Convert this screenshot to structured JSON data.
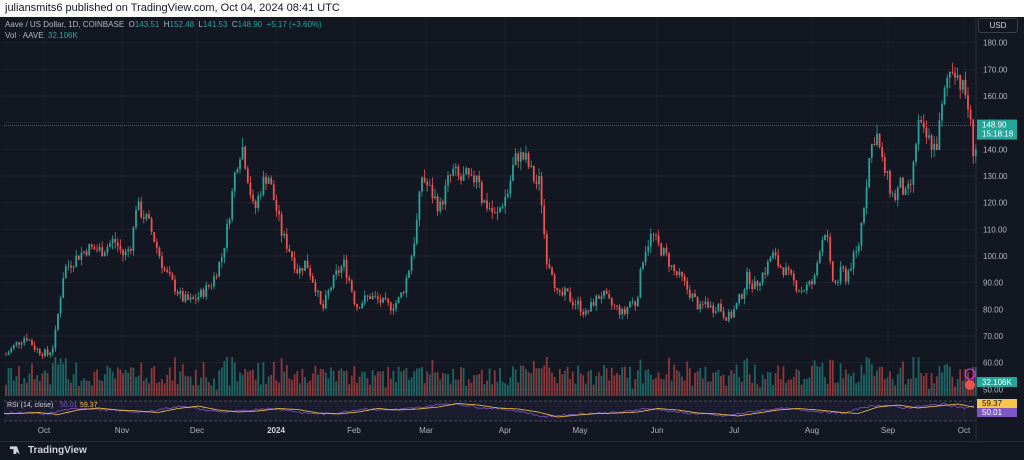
{
  "header": {
    "published": "juliansmits6 published on TradingView.com, Oct 04, 2024 08:41 UTC"
  },
  "legend": {
    "symbol": "Aave / US Dollar, 1D, COINBASE",
    "o_label": "O",
    "o": "143.51",
    "h_label": "H",
    "h": "152.48",
    "l_label": "L",
    "l": "141.53",
    "c_label": "C",
    "c": "148.90",
    "change": "+5.17 (+3.60%)",
    "vol_label": "Vol · AAVE",
    "vol": "32.106K"
  },
  "currency": "USD",
  "rsi_label": "RSI (14, close)",
  "rsi_value1": "50.01",
  "rsi_value2": "59.37",
  "price_badge": {
    "price": "148.90",
    "countdown": "15:18:18"
  },
  "volume_badge": "32.106K",
  "rsi_badges": [
    "59.37",
    "50.01"
  ],
  "footer": {
    "brand": "TradingView"
  },
  "colors": {
    "up": "#26a69a",
    "down": "#ef5350",
    "rsi": "#7e57c2",
    "rsi_ma": "#f7c54b",
    "background": "#131722"
  },
  "chart_data": {
    "type": "candlestick",
    "y_ticks": [
      180,
      170,
      160,
      150,
      140,
      130,
      120,
      110,
      100,
      90,
      80,
      70,
      60,
      50
    ],
    "y_range": [
      49,
      184
    ],
    "x_labels": [
      "Oct",
      "Nov",
      "Dec",
      "2024",
      "Feb",
      "Mar",
      "Apr",
      "May",
      "Jun",
      "Jul",
      "Aug",
      "Sep",
      "Oct"
    ],
    "anchors": [
      [
        0,
        63
      ],
      [
        10,
        67
      ],
      [
        20,
        70
      ],
      [
        30,
        65
      ],
      [
        42,
        63
      ],
      [
        48,
        67
      ],
      [
        58,
        95
      ],
      [
        72,
        100
      ],
      [
        82,
        103
      ],
      [
        96,
        102
      ],
      [
        108,
        106
      ],
      [
        118,
        100
      ],
      [
        126,
        105
      ],
      [
        130,
        119
      ],
      [
        142,
        113
      ],
      [
        152,
        102
      ],
      [
        158,
        95
      ],
      [
        166,
        90
      ],
      [
        176,
        84
      ],
      [
        186,
        83
      ],
      [
        196,
        86
      ],
      [
        206,
        90
      ],
      [
        216,
        100
      ],
      [
        222,
        112
      ],
      [
        230,
        134
      ],
      [
        236,
        142
      ],
      [
        240,
        134
      ],
      [
        248,
        116
      ],
      [
        256,
        127
      ],
      [
        262,
        131
      ],
      [
        266,
        124
      ],
      [
        270,
        118
      ],
      [
        276,
        108
      ],
      [
        284,
        102
      ],
      [
        292,
        94
      ],
      [
        300,
        98
      ],
      [
        310,
        88
      ],
      [
        316,
        79
      ],
      [
        322,
        86
      ],
      [
        330,
        93
      ],
      [
        338,
        97
      ],
      [
        344,
        90
      ],
      [
        350,
        81
      ],
      [
        356,
        83
      ],
      [
        364,
        85
      ],
      [
        374,
        83
      ],
      [
        384,
        81
      ],
      [
        392,
        83
      ],
      [
        398,
        88
      ],
      [
        404,
        97
      ],
      [
        410,
        110
      ],
      [
        416,
        130
      ],
      [
        422,
        126
      ],
      [
        428,
        122
      ],
      [
        434,
        118
      ],
      [
        442,
        128
      ],
      [
        448,
        132
      ],
      [
        454,
        128
      ],
      [
        460,
        130
      ],
      [
        466,
        127
      ],
      [
        472,
        133
      ],
      [
        476,
        121
      ],
      [
        484,
        118
      ],
      [
        490,
        114
      ],
      [
        496,
        120
      ],
      [
        502,
        124
      ],
      [
        508,
        135
      ],
      [
        512,
        138
      ],
      [
        520,
        136
      ],
      [
        530,
        127
      ],
      [
        534,
        128
      ],
      [
        540,
        100
      ],
      [
        546,
        95
      ],
      [
        552,
        84
      ],
      [
        560,
        86
      ],
      [
        566,
        83
      ],
      [
        572,
        82
      ],
      [
        580,
        78
      ],
      [
        588,
        83
      ],
      [
        596,
        86
      ],
      [
        604,
        82
      ],
      [
        612,
        80
      ],
      [
        618,
        78
      ],
      [
        624,
        83
      ],
      [
        630,
        82
      ],
      [
        638,
        102
      ],
      [
        646,
        108
      ],
      [
        652,
        104
      ],
      [
        660,
        100
      ],
      [
        668,
        94
      ],
      [
        676,
        91
      ],
      [
        682,
        87
      ],
      [
        688,
        84
      ],
      [
        694,
        80
      ],
      [
        700,
        83
      ],
      [
        706,
        80
      ],
      [
        712,
        82
      ],
      [
        718,
        78
      ],
      [
        724,
        77
      ],
      [
        730,
        81
      ],
      [
        736,
        86
      ],
      [
        742,
        93
      ],
      [
        748,
        88
      ],
      [
        754,
        92
      ],
      [
        760,
        95
      ],
      [
        766,
        101
      ],
      [
        772,
        97
      ],
      [
        778,
        95
      ],
      [
        784,
        92
      ],
      [
        790,
        89
      ],
      [
        796,
        87
      ],
      [
        802,
        89
      ],
      [
        808,
        90
      ],
      [
        814,
        104
      ],
      [
        820,
        111
      ],
      [
        824,
        96
      ],
      [
        828,
        89
      ],
      [
        832,
        91
      ],
      [
        836,
        95
      ],
      [
        840,
        92
      ],
      [
        846,
        98
      ],
      [
        852,
        102
      ],
      [
        858,
        120
      ],
      [
        864,
        139
      ],
      [
        870,
        147
      ],
      [
        876,
        135
      ],
      [
        882,
        128
      ],
      [
        888,
        121
      ],
      [
        894,
        127
      ],
      [
        900,
        122
      ],
      [
        906,
        128
      ],
      [
        912,
        150
      ],
      [
        918,
        145
      ],
      [
        924,
        143
      ],
      [
        930,
        140
      ],
      [
        936,
        155
      ],
      [
        942,
        168
      ],
      [
        948,
        172
      ],
      [
        954,
        165
      ],
      [
        960,
        160
      ],
      [
        964,
        152
      ],
      [
        966,
        140
      ],
      [
        970,
        141
      ]
    ],
    "volume_max": 100,
    "rsi_anchors": [
      [
        0,
        45
      ],
      [
        20,
        47
      ],
      [
        40,
        43
      ],
      [
        60,
        52
      ],
      [
        80,
        56
      ],
      [
        100,
        52
      ],
      [
        120,
        50
      ],
      [
        140,
        47
      ],
      [
        160,
        55
      ],
      [
        180,
        60
      ],
      [
        200,
        52
      ],
      [
        220,
        48
      ],
      [
        240,
        50
      ],
      [
        260,
        55
      ],
      [
        280,
        53
      ],
      [
        300,
        46
      ],
      [
        320,
        44
      ],
      [
        340,
        48
      ],
      [
        360,
        55
      ],
      [
        380,
        52
      ],
      [
        400,
        54
      ],
      [
        420,
        58
      ],
      [
        440,
        65
      ],
      [
        460,
        62
      ],
      [
        480,
        56
      ],
      [
        500,
        54
      ],
      [
        520,
        48
      ],
      [
        540,
        38
      ],
      [
        560,
        42
      ],
      [
        580,
        45
      ],
      [
        600,
        46
      ],
      [
        620,
        48
      ],
      [
        640,
        55
      ],
      [
        660,
        52
      ],
      [
        680,
        46
      ],
      [
        700,
        44
      ],
      [
        720,
        40
      ],
      [
        740,
        46
      ],
      [
        760,
        52
      ],
      [
        780,
        55
      ],
      [
        800,
        52
      ],
      [
        820,
        48
      ],
      [
        840,
        45
      ],
      [
        860,
        58
      ],
      [
        880,
        62
      ],
      [
        900,
        56
      ],
      [
        920,
        60
      ],
      [
        940,
        64
      ],
      [
        960,
        56
      ],
      [
        970,
        59
      ]
    ]
  }
}
